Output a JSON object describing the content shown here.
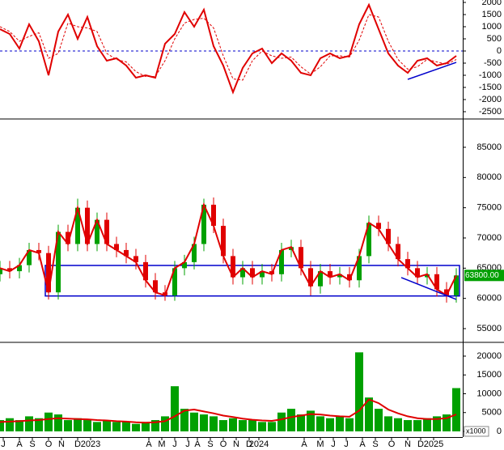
{
  "chart_data": [
    {
      "type": "line",
      "xlim": [
        0,
        143
      ],
      "ylim": [
        -2767,
        2100
      ],
      "yticks": [
        2000,
        1500,
        1000,
        500,
        0,
        -500,
        -1000,
        -1500,
        -2000,
        -2500
      ],
      "x": [
        0,
        3,
        6,
        9,
        12,
        15,
        18,
        21,
        24,
        27,
        30,
        33,
        36,
        39,
        42,
        45,
        48,
        51,
        54,
        57,
        60,
        63,
        66,
        69,
        72,
        75,
        78,
        81,
        84,
        87,
        90,
        93,
        96,
        99,
        102,
        105,
        108,
        111,
        114,
        117,
        120,
        123,
        126,
        129,
        132,
        135,
        138,
        141
      ],
      "series": [
        {
          "color": "#e00000",
          "values": [
            900,
            700,
            100,
            1100,
            400,
            -1000,
            800,
            1500,
            500,
            1400,
            200,
            -400,
            -300,
            -600,
            -1100,
            -1000,
            -1100,
            300,
            700,
            1600,
            1000,
            1700,
            200,
            -600,
            -1700,
            -700,
            -100,
            100,
            -500,
            -100,
            -400,
            -900,
            -1000,
            -300,
            -100,
            -300,
            -200,
            1100,
            1900,
            900,
            -100,
            -600,
            -900,
            -400,
            -300,
            -600,
            -500,
            -200
          ]
        },
        {
          "color": "#e00000",
          "dashed": true,
          "values": [
            1000,
            800,
            400,
            600,
            750,
            -300,
            -100,
            1150,
            1000,
            950,
            800,
            -100,
            -350,
            -450,
            -850,
            -1050,
            -1050,
            -400,
            500,
            1150,
            1300,
            1350,
            950,
            -200,
            -1150,
            -1200,
            -400,
            0,
            -200,
            -300,
            -250,
            -650,
            -950,
            -650,
            -200,
            -200,
            -250,
            450,
            1500,
            1400,
            400,
            -350,
            -750,
            -650,
            -350,
            -450,
            -550,
            -350
          ]
        }
      ],
      "reference_line": {
        "value": 0,
        "color": "#0000cc"
      },
      "trendline": {
        "x": [
          126,
          141
        ],
        "y": [
          -1170,
          -470
        ],
        "color": "#0000cc"
      }
    },
    {
      "type": "candlestick",
      "xlim": [
        0,
        143
      ],
      "ylim": [
        52860,
        89550
      ],
      "yticks": [
        85000,
        80000,
        75000,
        70000,
        65000,
        60000,
        55000
      ],
      "x": [
        0,
        3,
        6,
        9,
        12,
        15,
        18,
        21,
        24,
        27,
        30,
        33,
        36,
        39,
        42,
        45,
        48,
        51,
        54,
        57,
        60,
        63,
        66,
        69,
        72,
        75,
        78,
        81,
        84,
        87,
        90,
        93,
        96,
        99,
        102,
        105,
        108,
        111,
        114,
        117,
        120,
        123,
        126,
        129,
        132,
        135,
        138,
        141
      ],
      "up_color": "#00a000",
      "down_color": "#e00000",
      "open": [
        64000,
        65000,
        64500,
        65500,
        68000,
        67500,
        61000,
        71000,
        69000,
        75000,
        69000,
        73000,
        69000,
        68000,
        67000,
        66000,
        63000,
        61000,
        60500,
        65000,
        66000,
        69000,
        75500,
        72000,
        67000,
        63500,
        65000,
        63500,
        64500,
        64000,
        68000,
        68500,
        65000,
        62000,
        64500,
        63500,
        64000,
        63000,
        67000,
        72500,
        71500,
        69000,
        66500,
        65000,
        63500,
        64000,
        61500,
        60500
      ],
      "high": [
        66200,
        66200,
        66700,
        69200,
        69200,
        68700,
        72200,
        72200,
        76500,
        76200,
        74200,
        74200,
        70200,
        69200,
        68200,
        67200,
        64200,
        62200,
        66200,
        67200,
        70200,
        76500,
        76700,
        73200,
        68200,
        66200,
        66200,
        65700,
        65700,
        69200,
        69700,
        69700,
        66200,
        65700,
        65700,
        65200,
        65200,
        68200,
        73700,
        73700,
        72700,
        70200,
        67700,
        66200,
        65200,
        65200,
        62700,
        65000
      ],
      "low": [
        62800,
        63300,
        63300,
        64300,
        66300,
        59800,
        59800,
        67800,
        67800,
        67800,
        67800,
        67800,
        66800,
        65800,
        64800,
        61800,
        59800,
        59600,
        59600,
        63800,
        64800,
        67800,
        70800,
        65800,
        62300,
        62300,
        62300,
        62300,
        62800,
        62800,
        66800,
        63800,
        60500,
        60800,
        62300,
        62300,
        61800,
        61800,
        65800,
        70300,
        67800,
        65300,
        63800,
        62300,
        62300,
        60300,
        59300,
        59300
      ],
      "close": [
        65000,
        64500,
        65500,
        68000,
        67500,
        61000,
        71000,
        69000,
        75000,
        69000,
        73000,
        69000,
        68000,
        67000,
        66000,
        63000,
        61000,
        60500,
        65000,
        66000,
        69000,
        75500,
        72000,
        67000,
        63500,
        65000,
        63500,
        64500,
        64000,
        68000,
        68500,
        65000,
        62000,
        64500,
        63500,
        64000,
        63000,
        67000,
        72500,
        71500,
        69000,
        66500,
        65000,
        63500,
        64000,
        61500,
        60500,
        63800
      ],
      "last_price": {
        "value": 63800,
        "label": "63800.00"
      },
      "box": {
        "x": [
          14,
          142
        ],
        "y": [
          60400,
          65450
        ],
        "color": "#0000cc"
      },
      "trendline": {
        "x": [
          124,
          141
        ],
        "y": [
          63450,
          59830
        ],
        "color": "#0000cc"
      }
    },
    {
      "type": "bar",
      "xlim": [
        0,
        143
      ],
      "ylim": [
        0,
        23440
      ],
      "yticks": [
        20000,
        15000,
        10000,
        5000,
        0
      ],
      "unit_label": "x1000",
      "x": [
        0,
        3,
        6,
        9,
        12,
        15,
        18,
        21,
        24,
        27,
        30,
        33,
        36,
        39,
        42,
        45,
        48,
        51,
        54,
        57,
        60,
        63,
        66,
        69,
        72,
        75,
        78,
        81,
        84,
        87,
        90,
        93,
        96,
        99,
        102,
        105,
        108,
        111,
        114,
        117,
        120,
        123,
        126,
        129,
        132,
        135,
        138,
        141
      ],
      "series": [
        {
          "kind": "bar",
          "color": "#00a000",
          "values": [
            3000,
            3500,
            3000,
            4000,
            3500,
            5000,
            4500,
            3000,
            3500,
            3000,
            2500,
            3000,
            2500,
            2500,
            2000,
            2500,
            3000,
            4000,
            12000,
            6000,
            5000,
            4500,
            4000,
            3000,
            3500,
            3000,
            3000,
            2500,
            2500,
            5000,
            6000,
            4500,
            5500,
            4000,
            3500,
            4000,
            3500,
            21000,
            9000,
            6000,
            4000,
            3500,
            3000,
            3000,
            3500,
            4000,
            4500,
            11500
          ]
        },
        {
          "kind": "line",
          "color": "#e00000",
          "values": [
            2500,
            2600,
            2700,
            2900,
            3000,
            3300,
            3500,
            3400,
            3300,
            3200,
            3000,
            2900,
            2700,
            2600,
            2400,
            2300,
            2400,
            2700,
            4000,
            5500,
            5800,
            5300,
            4800,
            4200,
            3800,
            3400,
            3100,
            2900,
            2800,
            3200,
            3800,
            4200,
            4600,
            4500,
            4200,
            4000,
            3900,
            5500,
            8500,
            7500,
            5800,
            4800,
            4000,
            3500,
            3300,
            3300,
            3500,
            4500
          ]
        }
      ],
      "xticks": [
        {
          "value": 1,
          "label": "J"
        },
        {
          "value": 6,
          "label": "A"
        },
        {
          "value": 10,
          "label": "S"
        },
        {
          "value": 15,
          "label": "O"
        },
        {
          "value": 19,
          "label": "N"
        },
        {
          "value": 24,
          "label": "D"
        },
        {
          "value": 28,
          "label": "2023"
        },
        {
          "value": 46,
          "label": "A"
        },
        {
          "value": 50,
          "label": "M"
        },
        {
          "value": 54,
          "label": "J"
        },
        {
          "value": 58,
          "label": "J"
        },
        {
          "value": 61,
          "label": "A"
        },
        {
          "value": 65,
          "label": "S"
        },
        {
          "value": 69,
          "label": "O"
        },
        {
          "value": 73,
          "label": "N"
        },
        {
          "value": 77,
          "label": "D"
        },
        {
          "value": 80,
          "label": "2024"
        },
        {
          "value": 94,
          "label": "A"
        },
        {
          "value": 99,
          "label": "M"
        },
        {
          "value": 103,
          "label": "J"
        },
        {
          "value": 107,
          "label": "J"
        },
        {
          "value": 112,
          "label": "A"
        },
        {
          "value": 116,
          "label": "S"
        },
        {
          "value": 121,
          "label": "O"
        },
        {
          "value": 126,
          "label": "N"
        },
        {
          "value": 130,
          "label": "D"
        },
        {
          "value": 134,
          "label": "2025"
        }
      ]
    }
  ]
}
